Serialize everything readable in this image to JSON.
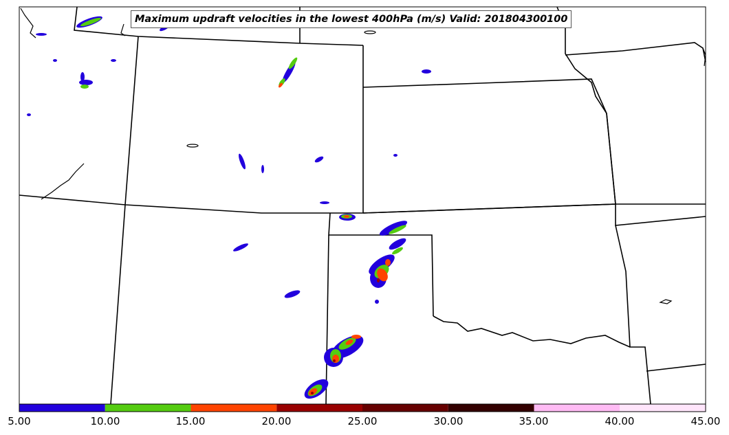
{
  "title": "Maximum updraft velocities in the lowest 400hPa (m/s) Valid: 201804300100",
  "colorbar": {
    "ticks": [
      "5.00",
      "10.00",
      "15.00",
      "20.00",
      "25.00",
      "30.00",
      "35.00",
      "40.00",
      "45.00"
    ],
    "min": 5,
    "max": 45,
    "bins": [
      {
        "from": 5,
        "to": 10,
        "color": "#2200dd"
      },
      {
        "from": 10,
        "to": 15,
        "color": "#55cc11"
      },
      {
        "from": 15,
        "to": 20,
        "color": "#ff4400"
      },
      {
        "from": 20,
        "to": 25,
        "color": "#990000"
      },
      {
        "from": 25,
        "to": 30,
        "color": "#660000"
      },
      {
        "from": 30,
        "to": 35,
        "color": "#330000"
      },
      {
        "from": 35,
        "to": 40,
        "color": "#ffbbf4"
      },
      {
        "from": 40,
        "to": 45,
        "color": "#ffe5fb"
      }
    ]
  },
  "legend_colors": {
    "low": "#2200dd",
    "mid": "#55cc11",
    "high": "#ff4400",
    "very_high": "#990000"
  }
}
